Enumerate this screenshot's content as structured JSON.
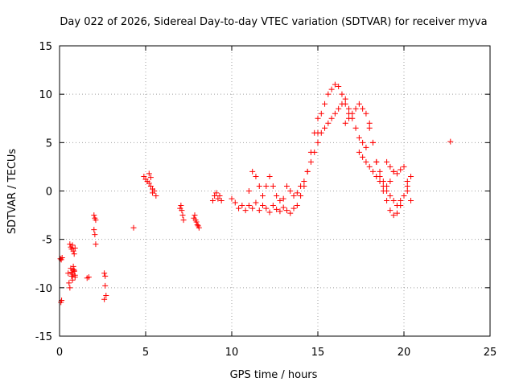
{
  "chart_data": {
    "type": "scatter",
    "title": "Day 022 of 2026, Sidereal Day-to-day VTEC variation (SDTVAR) for receiver myva",
    "xlabel": "GPS time / hours",
    "ylabel": "SDTVAR / TECUs",
    "xlim": [
      0,
      25
    ],
    "ylim": [
      -15,
      15
    ],
    "x_ticks": [
      0,
      5,
      10,
      15,
      20,
      25
    ],
    "y_ticks": [
      -15,
      -10,
      -5,
      0,
      5,
      10,
      15
    ],
    "x_tick_labels": [
      "0",
      "5",
      "10",
      "15",
      "20",
      "25"
    ],
    "y_tick_labels": [
      "-15",
      "-10",
      "-5",
      "0",
      "5",
      "10",
      "15"
    ],
    "grid": true,
    "marker": "+",
    "color": "#ff0000",
    "series": [
      {
        "name": "SDTVAR",
        "x": [
          0.05,
          0.1,
          0.15,
          0.08,
          0.12,
          0.5,
          0.55,
          0.6,
          0.65,
          0.7,
          0.75,
          0.8,
          0.85,
          0.9,
          0.6,
          0.65,
          0.7,
          0.75,
          0.8,
          0.85,
          0.9,
          0.7,
          0.75,
          0.8,
          0.85,
          0.9,
          1.6,
          1.7,
          2.0,
          2.05,
          2.1,
          2.0,
          2.05,
          2.1,
          2.6,
          2.65,
          2.7,
          2.6,
          2.65,
          4.3,
          4.9,
          5.0,
          5.1,
          5.2,
          5.3,
          5.4,
          5.5,
          5.6,
          5.2,
          5.3,
          5.4,
          7.0,
          7.1,
          7.2,
          7.05,
          7.15,
          7.8,
          7.9,
          8.0,
          8.1,
          7.85,
          7.95,
          8.05,
          8.9,
          9.0,
          9.1,
          9.2,
          9.3,
          9.4,
          10.0,
          10.2,
          10.4,
          10.6,
          10.8,
          11.0,
          11.2,
          11.4,
          11.6,
          11.8,
          12.0,
          12.2,
          12.4,
          12.6,
          12.8,
          13.0,
          13.2,
          13.4,
          13.6,
          13.8,
          11.0,
          11.2,
          11.4,
          11.6,
          11.8,
          12.0,
          12.2,
          12.4,
          12.6,
          12.8,
          13.0,
          13.2,
          13.4,
          13.6,
          13.8,
          14.0,
          14.2,
          14.4,
          14.6,
          14.8,
          15.0,
          14.0,
          14.2,
          14.4,
          14.6,
          14.8,
          15.0,
          15.2,
          15.4,
          15.6,
          15.8,
          16.0,
          16.2,
          16.4,
          16.6,
          16.8,
          15.0,
          15.2,
          15.4,
          15.6,
          15.8,
          16.0,
          16.2,
          16.4,
          16.6,
          16.8,
          17.0,
          17.2,
          17.4,
          17.6,
          17.8,
          16.6,
          16.8,
          17.0,
          17.2,
          17.4,
          17.6,
          17.8,
          18.0,
          18.2,
          18.4,
          18.6,
          18.8,
          19.0,
          19.2,
          19.4,
          17.4,
          17.6,
          17.8,
          18.0,
          18.2,
          18.4,
          18.6,
          18.8,
          19.0,
          19.2,
          19.4,
          19.6,
          19.8,
          20.0,
          20.2,
          18.0,
          18.2,
          18.4,
          18.6,
          18.8,
          19.0,
          19.2,
          19.4,
          19.6,
          19.8,
          20.0,
          20.2,
          20.4,
          19.0,
          19.2,
          19.4,
          19.6,
          19.8,
          20.0,
          20.2,
          20.4,
          22.7
        ],
        "y": [
          -7.0,
          -7.1,
          -6.9,
          -11.5,
          -11.3,
          -8.5,
          -9.5,
          -10.0,
          -8.0,
          -8.8,
          -9.2,
          -7.8,
          -8.2,
          -8.9,
          -5.5,
          -5.8,
          -6.0,
          -5.6,
          -6.2,
          -6.5,
          -5.9,
          -8.4,
          -8.6,
          -8.1,
          -8.3,
          -8.7,
          -9.0,
          -8.9,
          -2.5,
          -2.8,
          -3.0,
          -4.0,
          -4.5,
          -5.5,
          -8.5,
          -9.8,
          -10.8,
          -11.2,
          -8.8,
          -3.8,
          1.5,
          1.2,
          1.0,
          0.8,
          0.5,
          0.2,
          0.0,
          -0.5,
          1.8,
          1.4,
          -0.2,
          -1.8,
          -2.0,
          -3.0,
          -1.5,
          -2.5,
          -2.8,
          -3.0,
          -3.5,
          -3.8,
          -2.5,
          -3.2,
          -3.6,
          -1.0,
          -0.5,
          -0.2,
          -0.8,
          -0.5,
          -1.0,
          -0.8,
          -1.2,
          -1.8,
          -1.5,
          -2.0,
          -1.5,
          -1.8,
          -1.2,
          -2.0,
          -1.5,
          -1.8,
          -2.2,
          -1.5,
          -1.9,
          -2.1,
          -1.7,
          -2.0,
          -2.3,
          -1.8,
          -1.5,
          0.0,
          2.0,
          1.5,
          0.5,
          -0.5,
          0.5,
          1.5,
          0.5,
          -0.5,
          -1.0,
          -0.8,
          0.5,
          0.0,
          -0.5,
          -0.2,
          0.5,
          1.0,
          2.0,
          3.0,
          4.0,
          6.0,
          -0.5,
          0.5,
          2.0,
          4.0,
          6.0,
          7.5,
          8.0,
          9.0,
          10.0,
          10.5,
          11.0,
          10.8,
          10.0,
          9.0,
          8.0,
          5.0,
          6.0,
          6.5,
          7.0,
          7.5,
          8.0,
          8.5,
          9.0,
          9.5,
          8.5,
          7.5,
          6.5,
          5.5,
          5.0,
          4.5,
          7.0,
          7.5,
          8.0,
          8.5,
          9.0,
          8.5,
          8.0,
          7.0,
          5.0,
          3.0,
          2.0,
          1.0,
          0.5,
          1.0,
          2.0,
          4.0,
          3.5,
          3.0,
          2.5,
          2.0,
          1.5,
          1.0,
          0.5,
          0.0,
          -0.5,
          -1.0,
          -1.5,
          -1.0,
          -0.5,
          0.0,
          6.5,
          5.0,
          3.0,
          1.5,
          0.0,
          -1.0,
          -2.0,
          -2.5,
          -2.3,
          -1.5,
          -0.5,
          0.5,
          1.5,
          3.0,
          2.5,
          2.0,
          1.8,
          2.2,
          2.5,
          1.0,
          -1.0,
          5.1
        ]
      }
    ]
  }
}
